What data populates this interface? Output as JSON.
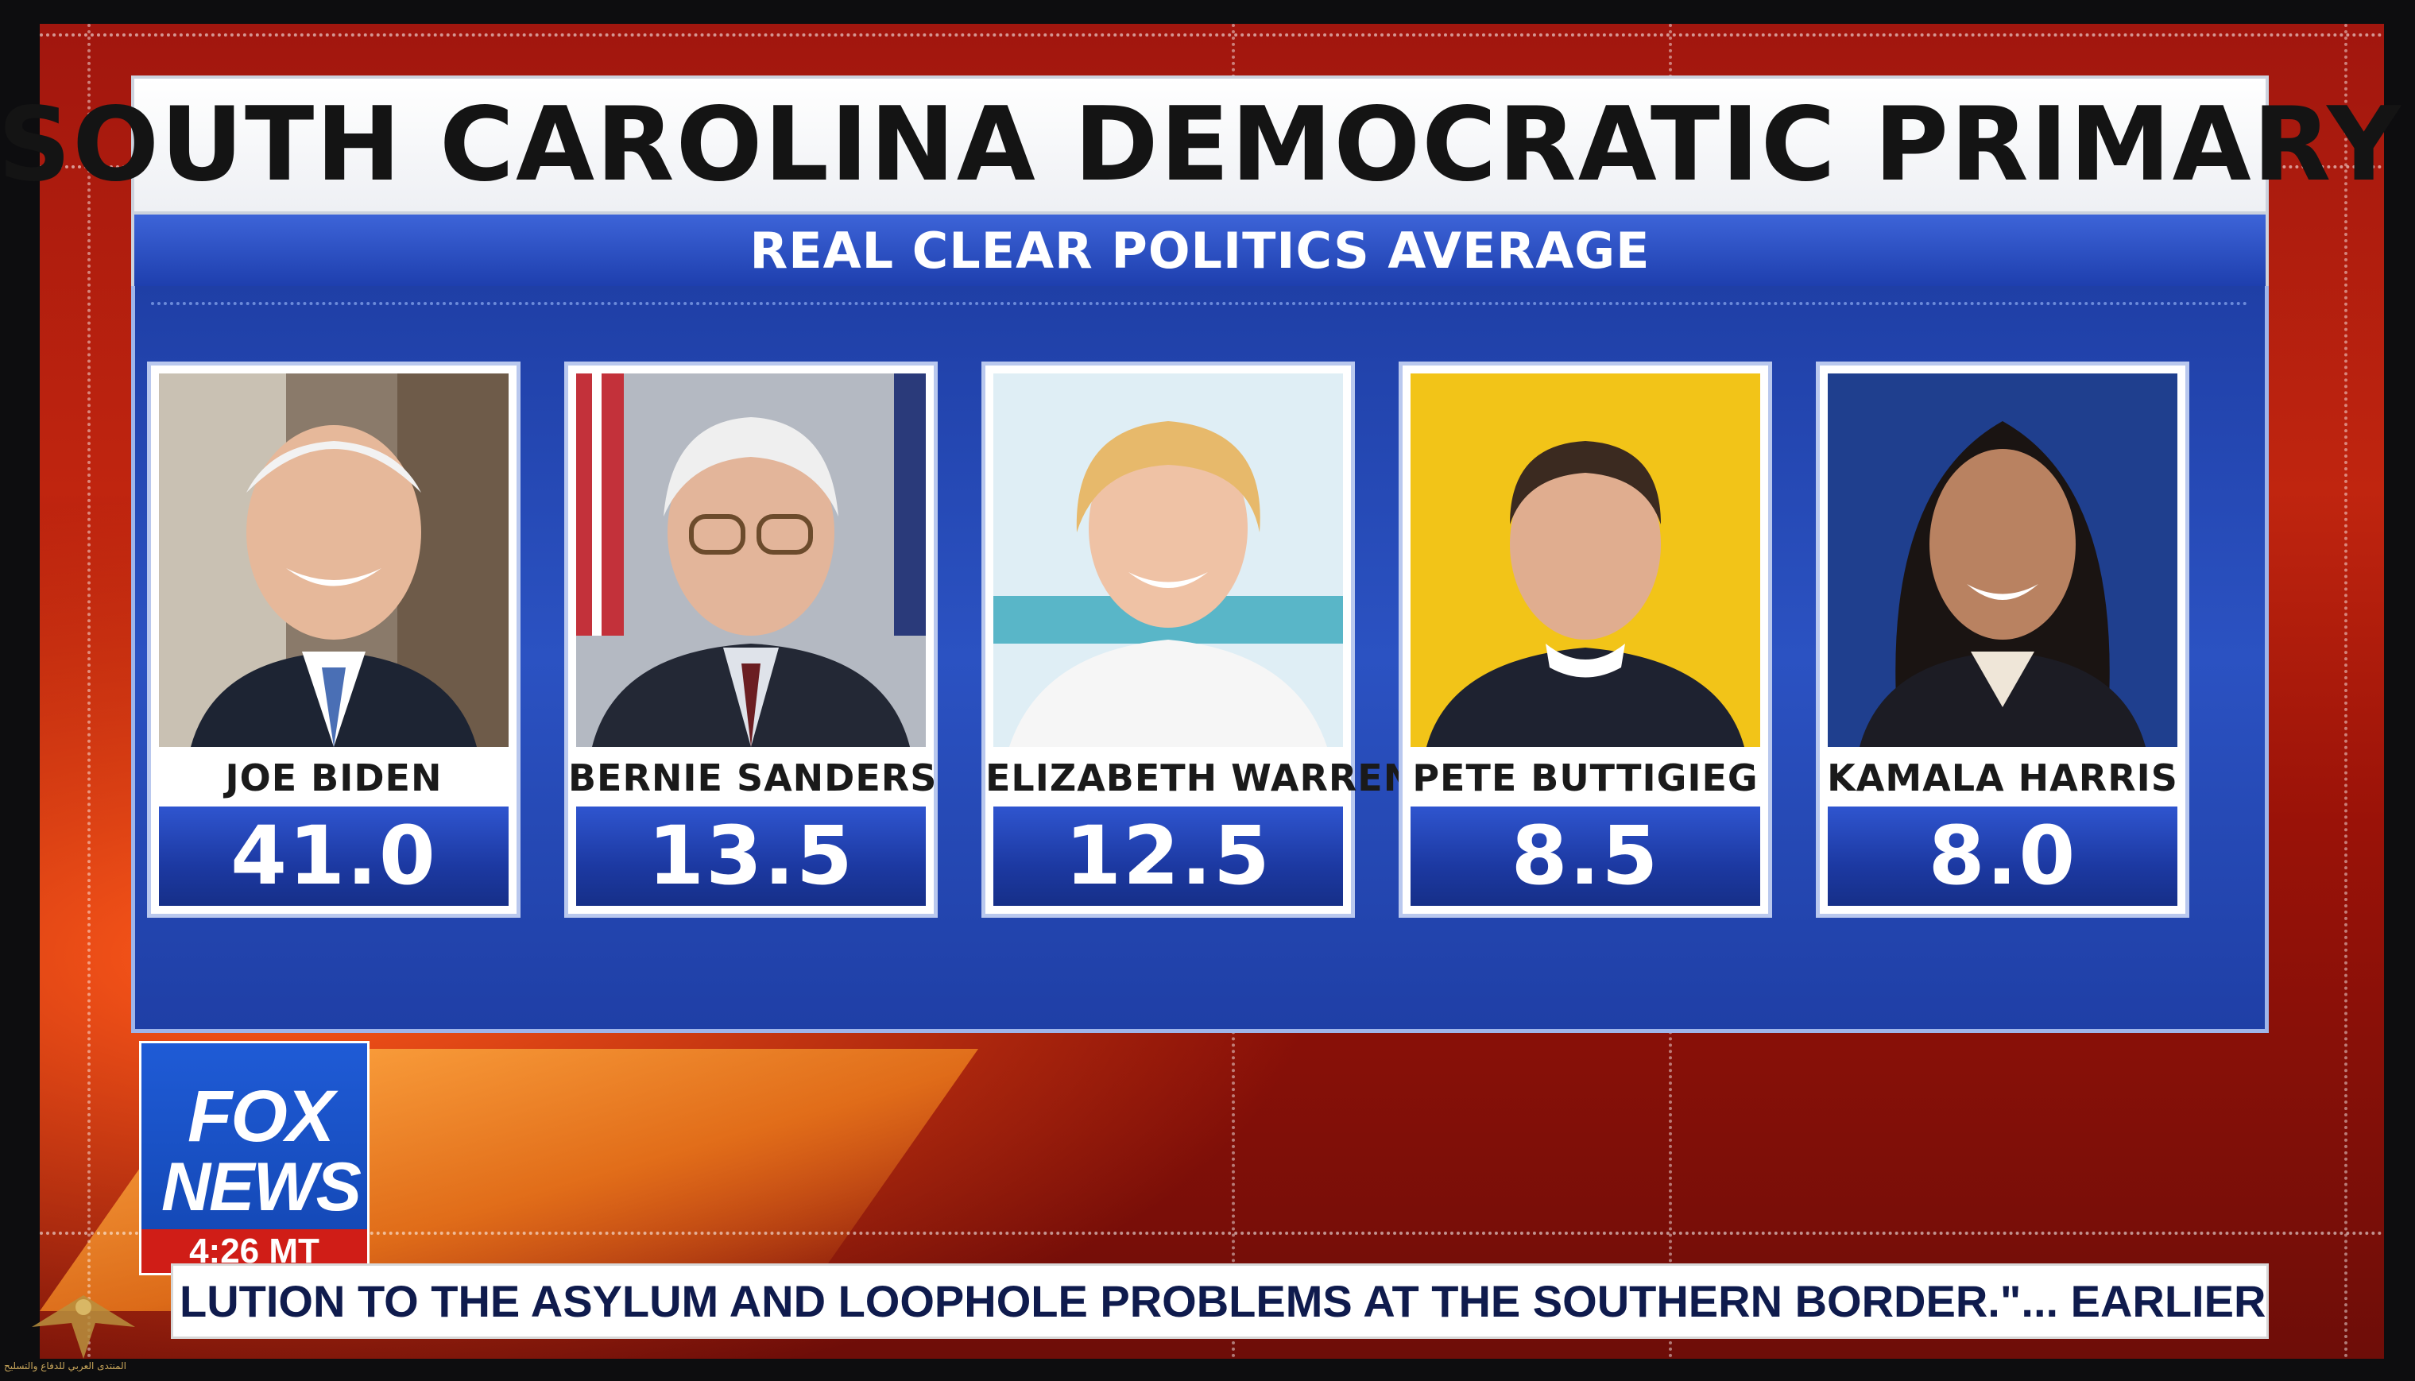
{
  "header": {
    "title": "SOUTH CAROLINA DEMOCRATIC PRIMARY",
    "subtitle": "REAL CLEAR POLITICS AVERAGE"
  },
  "candidates": [
    {
      "name": "JOE BIDEN",
      "value": "41.0"
    },
    {
      "name": "BERNIE SANDERS",
      "value": "13.5"
    },
    {
      "name": "ELIZABETH WARREN",
      "value": "12.5"
    },
    {
      "name": "PETE BUTTIGIEG",
      "value": "8.5"
    },
    {
      "name": "KAMALA HARRIS",
      "value": "8.0"
    }
  ],
  "logo": {
    "line1": "FOX",
    "line2": "NEWS",
    "time": "4:26 MT"
  },
  "ticker": {
    "text": "LUTION TO THE ASYLUM AND LOOPHOLE PROBLEMS AT THE SOUTHERN BORDER.\"...     EARLIER SAT, TRUMP"
  },
  "watermark": {
    "text": "المنتدى العربي للدفاع والتسليح"
  },
  "colors": {
    "background_red": "#b01d0d",
    "panel_blue": "#1f3fa6",
    "value_blue": "#1c39a2",
    "card_white": "#ffffff",
    "logo_red": "#d01d17"
  }
}
